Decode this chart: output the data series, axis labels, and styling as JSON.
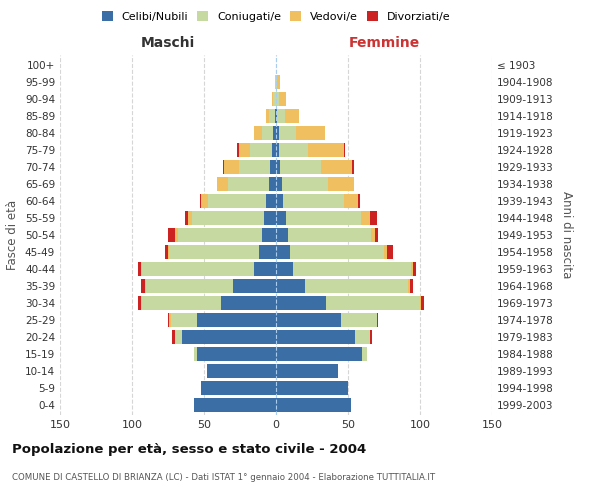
{
  "age_groups": [
    "0-4",
    "5-9",
    "10-14",
    "15-19",
    "20-24",
    "25-29",
    "30-34",
    "35-39",
    "40-44",
    "45-49",
    "50-54",
    "55-59",
    "60-64",
    "65-69",
    "70-74",
    "75-79",
    "80-84",
    "85-89",
    "90-94",
    "95-99",
    "100+"
  ],
  "birth_years": [
    "1999-2003",
    "1994-1998",
    "1989-1993",
    "1984-1988",
    "1979-1983",
    "1974-1978",
    "1969-1973",
    "1964-1968",
    "1959-1963",
    "1954-1958",
    "1949-1953",
    "1944-1948",
    "1939-1943",
    "1934-1938",
    "1929-1933",
    "1924-1928",
    "1919-1923",
    "1914-1918",
    "1909-1913",
    "1904-1908",
    "≤ 1903"
  ],
  "male_celibe": [
    57,
    52,
    48,
    55,
    65,
    55,
    38,
    30,
    15,
    12,
    10,
    8,
    7,
    5,
    4,
    3,
    2,
    1,
    0,
    0,
    0
  ],
  "male_coniugato": [
    0,
    0,
    0,
    2,
    5,
    18,
    55,
    60,
    78,
    62,
    58,
    50,
    40,
    28,
    22,
    15,
    8,
    4,
    2,
    1,
    0
  ],
  "male_vedovo": [
    0,
    0,
    0,
    0,
    0,
    1,
    1,
    1,
    1,
    1,
    2,
    3,
    5,
    8,
    10,
    8,
    5,
    2,
    1,
    0,
    0
  ],
  "male_divorziato": [
    0,
    0,
    0,
    0,
    2,
    1,
    2,
    3,
    2,
    2,
    5,
    2,
    1,
    0,
    1,
    1,
    0,
    0,
    0,
    0,
    0
  ],
  "female_celibe": [
    52,
    50,
    43,
    60,
    55,
    45,
    35,
    20,
    12,
    10,
    8,
    7,
    5,
    4,
    3,
    2,
    2,
    1,
    0,
    0,
    0
  ],
  "female_coniugato": [
    0,
    0,
    0,
    3,
    10,
    25,
    65,
    72,
    82,
    65,
    58,
    52,
    42,
    32,
    28,
    20,
    12,
    5,
    2,
    1,
    0
  ],
  "female_vedovo": [
    0,
    0,
    0,
    0,
    0,
    0,
    1,
    1,
    1,
    2,
    3,
    6,
    10,
    18,
    22,
    25,
    20,
    10,
    5,
    2,
    0
  ],
  "female_divorziato": [
    0,
    0,
    0,
    0,
    2,
    1,
    2,
    2,
    2,
    4,
    2,
    5,
    1,
    0,
    1,
    1,
    0,
    0,
    0,
    0,
    0
  ],
  "colors": {
    "celibe": "#3a6ea5",
    "coniugato": "#c5d9a0",
    "vedovo": "#f0c060",
    "divorziato": "#cc2222"
  },
  "title": "Popolazione per età, sesso e stato civile - 2004",
  "subtitle": "COMUNE DI CASTELLO DI BRIANZA (LC) - Dati ISTAT 1° gennaio 2004 - Elaborazione TUTTITALIA.IT",
  "xlabel_left": "Maschi",
  "xlabel_right": "Femmine",
  "ylabel_left": "Fasce di età",
  "ylabel_right": "Anni di nascita",
  "xlim": 150,
  "legend_labels": [
    "Celibi/Nubili",
    "Coniugati/e",
    "Vedovi/e",
    "Divorziati/e"
  ],
  "background_color": "#ffffff"
}
